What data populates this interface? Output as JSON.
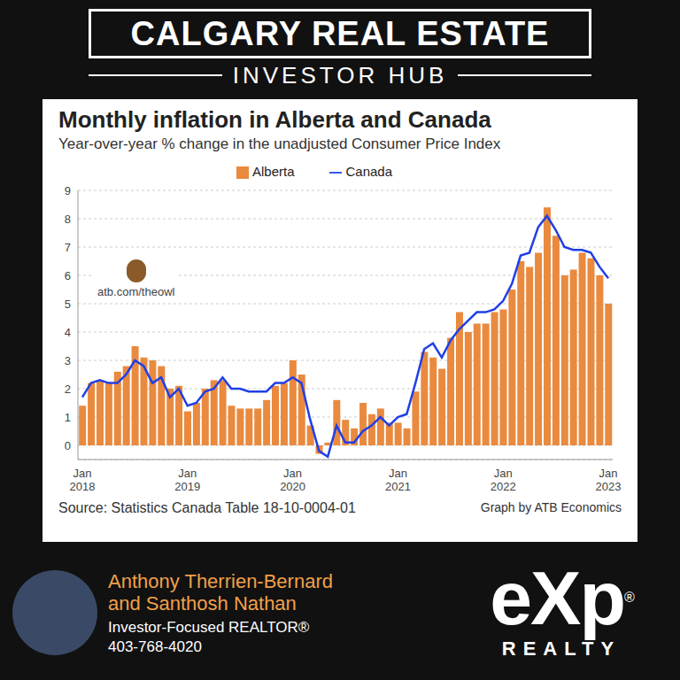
{
  "header": {
    "title": "CALGARY REAL ESTATE",
    "subtitle": "INVESTOR HUB"
  },
  "chart_data": {
    "type": "bar",
    "title": "Monthly inflation in Alberta and Canada",
    "subtitle": "Year-over-year % change in the unadjusted Consumer Price Index",
    "annotation": "atb.com/theowl",
    "source": "Source: Statistics Canada Table 18-10-0004-01",
    "credit": "Graph by ATB Economics",
    "categories": [
      "Jan 2018",
      null,
      null,
      null,
      null,
      null,
      null,
      null,
      null,
      null,
      null,
      null,
      "Jan 2019",
      null,
      null,
      null,
      null,
      null,
      null,
      null,
      null,
      null,
      null,
      null,
      "Jan 2020",
      null,
      null,
      null,
      null,
      null,
      null,
      null,
      null,
      null,
      null,
      null,
      "Jan 2021",
      null,
      null,
      null,
      null,
      null,
      null,
      null,
      null,
      null,
      null,
      null,
      "Jan 2022",
      null,
      null,
      null,
      null,
      null,
      null,
      null,
      null,
      null,
      null,
      null,
      "Jan 2023"
    ],
    "series": [
      {
        "name": "Alberta",
        "type": "bar",
        "color": "#e98a3f",
        "values": [
          1.4,
          2.2,
          2.3,
          2.2,
          2.6,
          2.8,
          3.5,
          3.1,
          3.0,
          2.8,
          2.0,
          2.1,
          1.2,
          1.5,
          2.0,
          2.3,
          2.3,
          1.4,
          1.3,
          1.3,
          1.3,
          1.6,
          2.1,
          2.2,
          3.0,
          2.5,
          0.7,
          -0.3,
          0.1,
          1.6,
          0.9,
          0.6,
          1.5,
          1.1,
          1.3,
          0.8,
          0.8,
          0.6,
          1.9,
          3.3,
          3.1,
          2.7,
          3.8,
          4.7,
          4.0,
          4.3,
          4.3,
          4.7,
          4.8,
          5.5,
          6.5,
          6.3,
          6.8,
          8.4,
          7.4,
          6.0,
          6.2,
          6.8,
          6.6,
          6.0,
          5.0
        ]
      },
      {
        "name": "Canada",
        "type": "line",
        "color": "#1f3fe6",
        "values": [
          1.7,
          2.2,
          2.3,
          2.2,
          2.2,
          2.5,
          3.0,
          2.8,
          2.2,
          2.4,
          1.7,
          2.0,
          1.4,
          1.5,
          1.9,
          2.0,
          2.4,
          2.0,
          2.0,
          1.9,
          1.9,
          1.9,
          2.2,
          2.2,
          2.4,
          2.2,
          0.9,
          -0.2,
          -0.4,
          0.7,
          0.1,
          0.1,
          0.5,
          0.7,
          1.0,
          0.7,
          1.0,
          1.1,
          2.2,
          3.4,
          3.6,
          3.1,
          3.7,
          4.1,
          4.4,
          4.7,
          4.7,
          4.8,
          5.1,
          5.7,
          6.7,
          6.8,
          7.7,
          8.1,
          7.6,
          7.0,
          6.9,
          6.9,
          6.8,
          6.3,
          5.9
        ]
      }
    ],
    "ylim": [
      -0.5,
      9
    ],
    "yticks": [
      0,
      1,
      2,
      3,
      4,
      5,
      6,
      7,
      8,
      9
    ],
    "grid": true,
    "legend": "top"
  },
  "footer": {
    "names": [
      "Anthony Therrien-Bernard",
      "and Santhosh Nathan"
    ],
    "role": "Investor-Focused REALTOR®",
    "phone": "403-768-4020",
    "brand": "eXp",
    "brand_mark": "®",
    "brand_sub": "REALTY"
  }
}
